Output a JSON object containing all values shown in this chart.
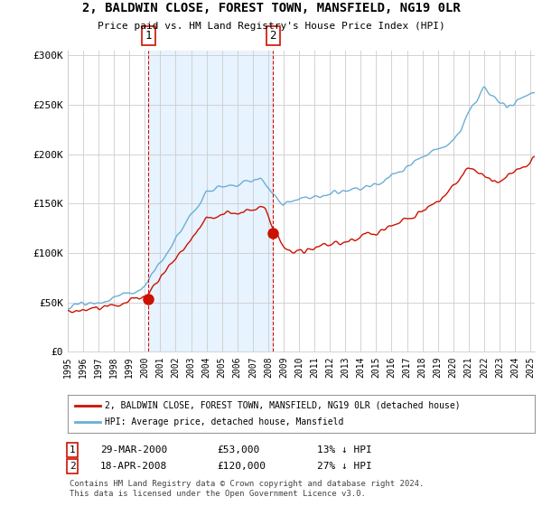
{
  "title": "2, BALDWIN CLOSE, FOREST TOWN, MANSFIELD, NG19 0LR",
  "subtitle": "Price paid vs. HM Land Registry's House Price Index (HPI)",
  "ylabel_ticks": [
    "£0",
    "£50K",
    "£100K",
    "£150K",
    "£200K",
    "£250K",
    "£300K"
  ],
  "ytick_values": [
    0,
    50000,
    100000,
    150000,
    200000,
    250000,
    300000
  ],
  "ylim": [
    0,
    305000
  ],
  "xlim_start": 1995.0,
  "xlim_end": 2025.3,
  "sale1_year": 2000.22,
  "sale1_price": 53000,
  "sale2_year": 2008.3,
  "sale2_price": 120000,
  "hpi_color": "#6baed6",
  "price_color": "#cc1100",
  "shade_color": "#ddeeff",
  "legend_label1": "2, BALDWIN CLOSE, FOREST TOWN, MANSFIELD, NG19 0LR (detached house)",
  "legend_label2": "HPI: Average price, detached house, Mansfield",
  "footer": "Contains HM Land Registry data © Crown copyright and database right 2024.\nThis data is licensed under the Open Government Licence v3.0.",
  "background_color": "#ffffff",
  "grid_color": "#cccccc"
}
